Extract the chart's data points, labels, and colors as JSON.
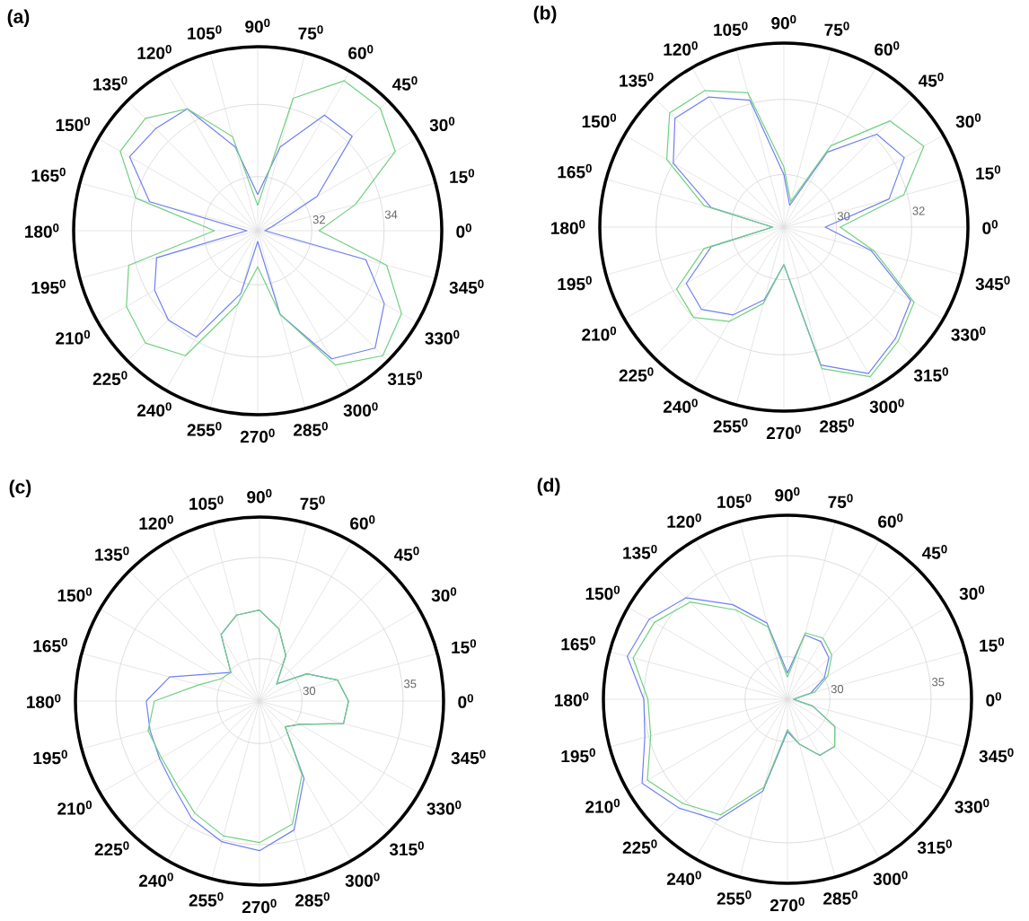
{
  "chart_data": [
    {
      "type": "radar",
      "title": "**(a)**",
      "categories": [
        "90$^{0}$",
        "75$^{0}$",
        "60$^{0}$",
        "45$^{0}$",
        "30$^{0}$",
        "15$^{0}$",
        "0$^{0}$",
        "345$^{0}$",
        "330$^{0}$",
        "315$^{0}$",
        "300$^{0}$",
        "285$^{0}$",
        "270$^{0}$",
        "255$^{0}$",
        "240$^{0}$",
        "225$^{0}$",
        "210$^{0}$",
        "195$^{0}$",
        "180$^{0}$",
        "165$^{0}$",
        "150$^{0}$",
        "135$^{0}$",
        "120$^{0}$",
        "105$^{0}$"
      ],
      "ylim": [
        30.5,
        35.6
      ],
      "yticks": [
        32,
        34
      ],
      "grid": true,
      "series": [
        {
          "color": "#7080f0",
          "values": [
            31.5,
            32.9,
            34.2,
            34.2,
            32.4,
            30.9,
            30.7,
            33.6,
            34.55,
            35.1,
            34.6,
            32.9,
            30.8,
            32.3,
            33.9,
            34.0,
            33.8,
            33.4,
            30.8,
            33.6,
            34.6,
            34.5,
            34.4,
            32.9
          ]
        },
        {
          "color": "#70d080",
          "values": [
            31.2,
            34.3,
            35.3,
            35.3,
            34.9,
            33.3,
            32.2,
            34.2,
            35.1,
            35.4,
            34.8,
            32.9,
            31.5,
            32.6,
            34.5,
            34.9,
            34.7,
            34.2,
            31.7,
            34.0,
            34.9,
            34.9,
            34.4,
            33.2
          ]
        }
      ]
    },
    {
      "type": "radar",
      "title": "**(b)**",
      "categories": [
        "90$^{0}$",
        "75$^{0}$",
        "60$^{0}$",
        "45$^{0}$",
        "30$^{0}$",
        "15$^{0}$",
        "0$^{0}$",
        "345$^{0}$",
        "330$^{0}$",
        "315$^{0}$",
        "300$^{0}$",
        "285$^{0}$",
        "270$^{0}$",
        "255$^{0}$",
        "240$^{0}$",
        "225$^{0}$",
        "210$^{0}$",
        "195$^{0}$",
        "180$^{0}$",
        "165$^{0}$",
        "150$^{0}$",
        "135$^{0}$",
        "120$^{0}$",
        "105$^{0}$"
      ],
      "ylim": [
        28.6,
        33.5
      ],
      "yticks": [
        30,
        32
      ],
      "grid": true,
      "series": [
        {
          "color": "#7080f0",
          "values": [
            30.0,
            29.2,
            30.9,
            32.1,
            32.3,
            31.5,
            29.7,
            31.0,
            32.5,
            32.8,
            33.1,
            32.4,
            29.6,
            30.6,
            31.3,
            31.7,
            31.6,
            30.6,
            28.9,
            30.6,
            32.0,
            32.7,
            32.6,
            32.1
          ]
        },
        {
          "color": "#70d080",
          "values": [
            30.2,
            29.3,
            31.1,
            32.6,
            32.9,
            31.9,
            30.1,
            31.1,
            32.6,
            32.9,
            33.2,
            32.5,
            29.6,
            30.7,
            31.5,
            32.0,
            31.9,
            30.8,
            28.9,
            30.8,
            32.2,
            32.9,
            32.8,
            32.3
          ]
        }
      ]
    },
    {
      "type": "radar",
      "title": "**(c)**",
      "categories": [
        "90$^{0}$",
        "75$^{0}$",
        "60$^{0}$",
        "45$^{0}$",
        "30$^{0}$",
        "15$^{0}$",
        "0$^{0}$",
        "345$^{0}$",
        "330$^{0}$",
        "315$^{0}$",
        "300$^{0}$",
        "285$^{0}$",
        "270$^{0}$",
        "255$^{0}$",
        "240$^{0}$",
        "225$^{0}$",
        "210$^{0}$",
        "195$^{0}$",
        "180$^{0}$",
        "165$^{0}$",
        "150$^{0}$",
        "135$^{0}$",
        "120$^{0}$",
        "105$^{0}$"
      ],
      "ylim": [
        27.9,
        37
      ],
      "yticks": [
        30,
        35
      ],
      "grid": true,
      "series": [
        {
          "color": "#7080f0",
          "values": [
            32.4,
            31.6,
            30.5,
            29.1,
            30.6,
            31.9,
            32.3,
            32.2,
            30.2,
            29.7,
            32.3,
            34.5,
            35.3,
            35.1,
            34.6,
            33.9,
            33.6,
            33.5,
            33.5,
            32.5,
            30.6,
            29.9,
            31.7,
            32.3
          ]
        },
        {
          "color": "#70d080",
          "values": [
            32.4,
            31.6,
            30.5,
            29.1,
            30.6,
            31.9,
            32.3,
            32.2,
            30.2,
            29.7,
            32.1,
            34.2,
            34.9,
            34.8,
            34.3,
            33.7,
            33.5,
            33.6,
            33.1,
            31.0,
            30.1,
            29.9,
            31.7,
            32.3
          ]
        }
      ]
    },
    {
      "type": "radar",
      "title": "**(d)**",
      "categories": [
        "90$^{0}$",
        "75$^{0}$",
        "60$^{0}$",
        "45$^{0}$",
        "30$^{0}$",
        "15$^{0}$",
        "0$^{0}$",
        "345$^{0}$",
        "330$^{0}$",
        "315$^{0}$",
        "300$^{0}$",
        "285$^{0}$",
        "270$^{0}$",
        "255$^{0}$",
        "240$^{0}$",
        "225$^{0}$",
        "210$^{0}$",
        "195$^{0}$",
        "180$^{0}$",
        "165$^{0}$",
        "150$^{0}$",
        "135$^{0}$",
        "120$^{0}$",
        "105$^{0}$"
      ],
      "ylim": [
        27.9,
        37
      ],
      "yticks": [
        30,
        35
      ],
      "grid": true,
      "series": [
        {
          "color": "#7080f0",
          "values": [
            29.2,
            31.2,
            31.2,
            30.8,
            30.0,
            29.1,
            28.2,
            29.2,
            30.6,
            31.2,
            31.1,
            30.2,
            29.5,
            32.6,
            34.8,
            35.5,
            36.2,
            35.2,
            35.0,
            36.1,
            35.8,
            35.0,
            33.3,
            31.8
          ]
        },
        {
          "color": "#70d080",
          "values": [
            29.0,
            31.3,
            31.4,
            31.0,
            30.2,
            29.3,
            28.2,
            29.2,
            30.6,
            31.2,
            31.1,
            30.2,
            29.4,
            32.4,
            34.5,
            35.2,
            35.9,
            34.9,
            34.8,
            35.8,
            35.5,
            34.7,
            33.0,
            31.6
          ]
        }
      ]
    }
  ]
}
